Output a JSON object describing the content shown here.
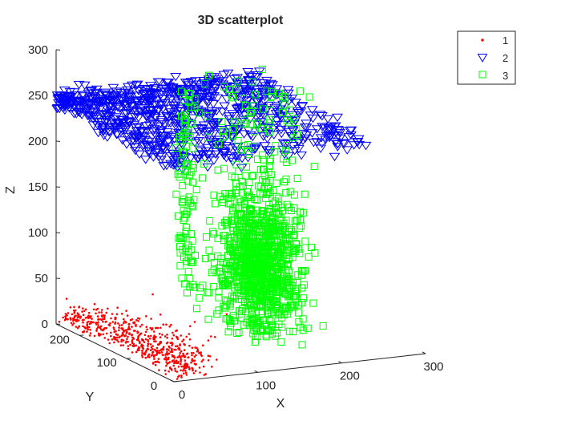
{
  "chart_data": {
    "type": "scatter",
    "title": "3D scatterplot",
    "xlabel": "X",
    "ylabel": "Y",
    "zlabel": "Z",
    "xlim": [
      0,
      300
    ],
    "ylim": [
      0,
      250
    ],
    "zlim": [
      0,
      300
    ],
    "x_ticks": [
      "0",
      "100",
      "200",
      "300"
    ],
    "y_ticks": [
      "0",
      "100",
      "200"
    ],
    "z_ticks": [
      "0",
      "50",
      "100",
      "150",
      "200",
      "250",
      "300"
    ],
    "grid": false,
    "legend_position": "top-right",
    "series": [
      {
        "name": "1",
        "marker": "point",
        "color": "#ff0000",
        "count": 600,
        "x_range": [
          0,
          80
        ],
        "y_range": [
          0,
          250
        ],
        "z_range": [
          0,
          100
        ]
      },
      {
        "name": "2",
        "marker": "triangle-down",
        "color": "#0000ff",
        "count": 900,
        "x_range": [
          0,
          240
        ],
        "y_range": [
          0,
          250
        ],
        "z_range": [
          215,
          260
        ]
      },
      {
        "name": "3",
        "marker": "square",
        "color": "#00ff00",
        "count": 1200,
        "x_range": [
          120,
          260
        ],
        "y_range": [
          80,
          240
        ],
        "z_range": [
          0,
          270
        ]
      }
    ]
  }
}
